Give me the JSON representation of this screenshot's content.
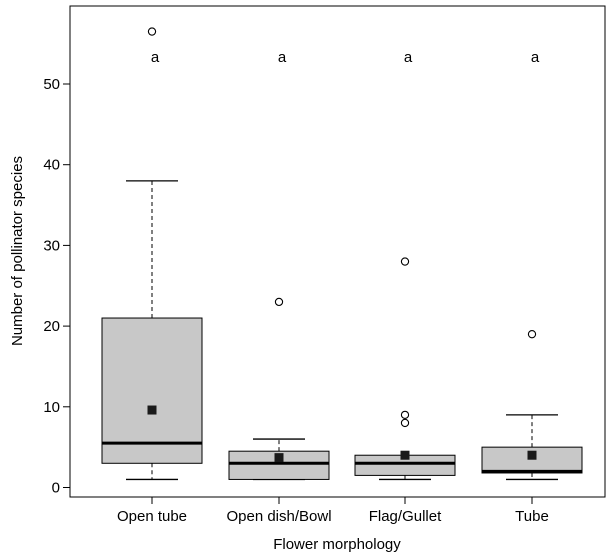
{
  "chart_data": {
    "type": "box",
    "xlabel": "Flower morphology",
    "ylabel": "Number of pollinator species",
    "ylim": [
      0,
      57
    ],
    "yticks": [
      0,
      10,
      20,
      30,
      40,
      50
    ],
    "grid": false,
    "colors": {
      "box_fill": "#c8c8c8",
      "stroke": "#000000",
      "mean_marker": "#1a1a1a"
    },
    "categories": [
      "Open tube",
      "Open dish/Bowl",
      "Flag/Gullet",
      "Tube"
    ],
    "boxes": [
      {
        "category": "Open tube",
        "whisker_low": 1,
        "q1": 3,
        "median": 5.5,
        "q3": 21,
        "whisker_high": 38,
        "mean": 9.6,
        "outliers": [
          56.5
        ],
        "letter": "a"
      },
      {
        "category": "Open dish/Bowl",
        "whisker_low": 1,
        "q1": 1,
        "median": 3,
        "q3": 4.5,
        "whisker_high": 6,
        "mean": 3.7,
        "outliers": [
          23
        ],
        "letter": "a"
      },
      {
        "category": "Flag/Gullet",
        "whisker_low": 1,
        "q1": 1.5,
        "median": 3,
        "q3": 4,
        "whisker_high": 4,
        "mean": 4,
        "outliers": [
          28,
          9,
          8
        ],
        "letter": "a"
      },
      {
        "category": "Tube",
        "whisker_low": 1,
        "q1": 1.8,
        "median": 2,
        "q3": 5,
        "whisker_high": 9,
        "mean": 4,
        "outliers": [
          19
        ],
        "letter": "a"
      }
    ],
    "letters_y": 53.5,
    "mean_marker_shape": "filled-square",
    "outlier_marker_shape": "open-circle"
  }
}
